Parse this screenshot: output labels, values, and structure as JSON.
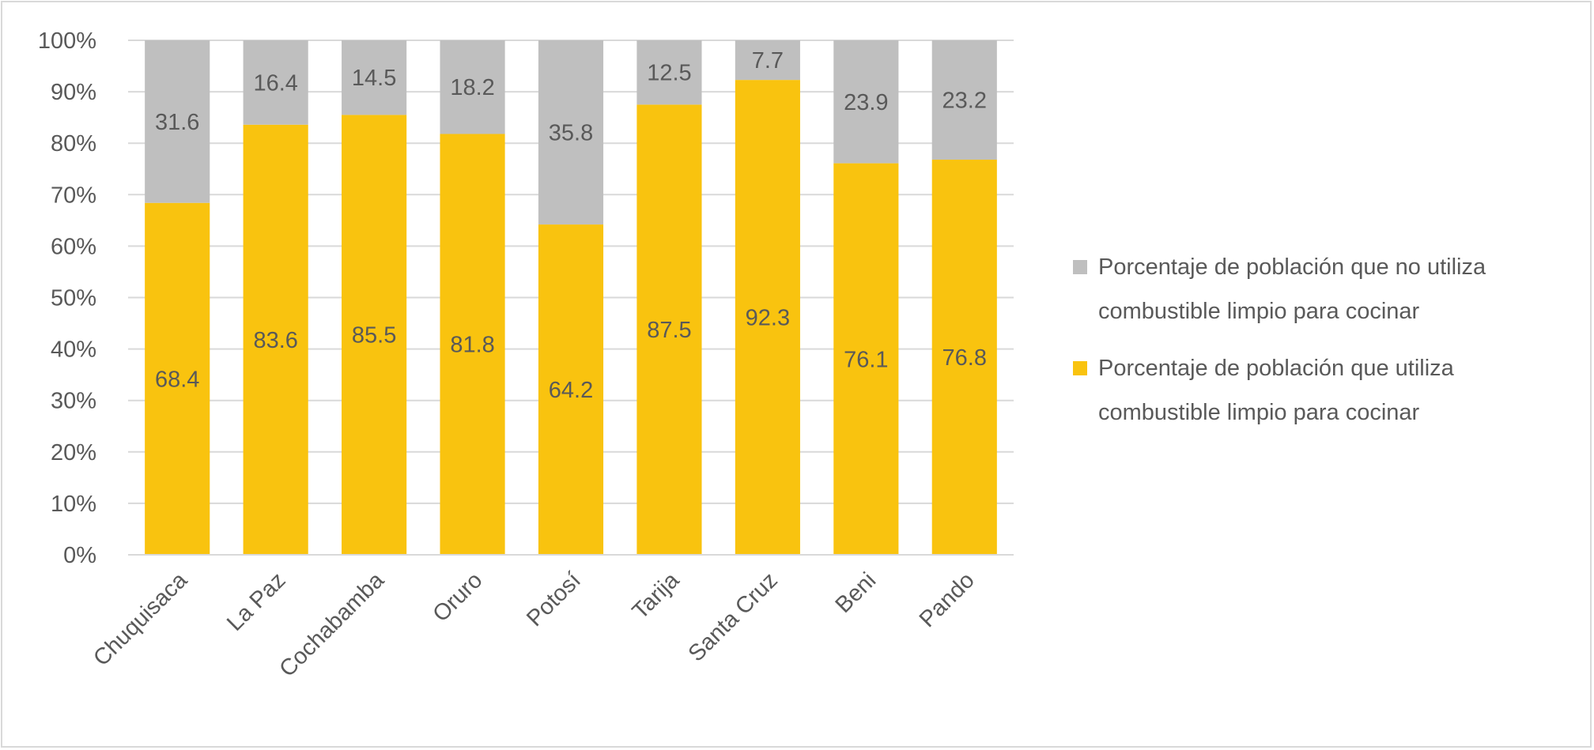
{
  "chart_data": {
    "type": "bar",
    "stacked": true,
    "categories": [
      "Chuquisaca",
      "La Paz",
      "Cochabamba",
      "Oruro",
      "Potosí",
      "Tarija",
      "Santa Cruz",
      "Beni",
      "Pando"
    ],
    "series": [
      {
        "name": "Porcentaje de población que utiliza combustible limpio para cocinar",
        "color": "#f9c30f",
        "values": [
          68.4,
          83.6,
          85.5,
          81.8,
          64.2,
          87.5,
          92.3,
          76.1,
          76.8
        ]
      },
      {
        "name": "Porcentaje de población que no utiliza combustible limpio para cocinar",
        "color": "#bfbfbf",
        "values": [
          31.6,
          16.4,
          14.5,
          18.2,
          35.8,
          12.5,
          7.7,
          23.9,
          23.2
        ]
      }
    ],
    "yticks": [
      "0%",
      "10%",
      "20%",
      "30%",
      "40%",
      "50%",
      "60%",
      "70%",
      "80%",
      "90%",
      "100%"
    ],
    "ylim": [
      0,
      100
    ],
    "grid": true,
    "legend_position": "right",
    "title": "",
    "xlabel": "",
    "ylabel": ""
  }
}
